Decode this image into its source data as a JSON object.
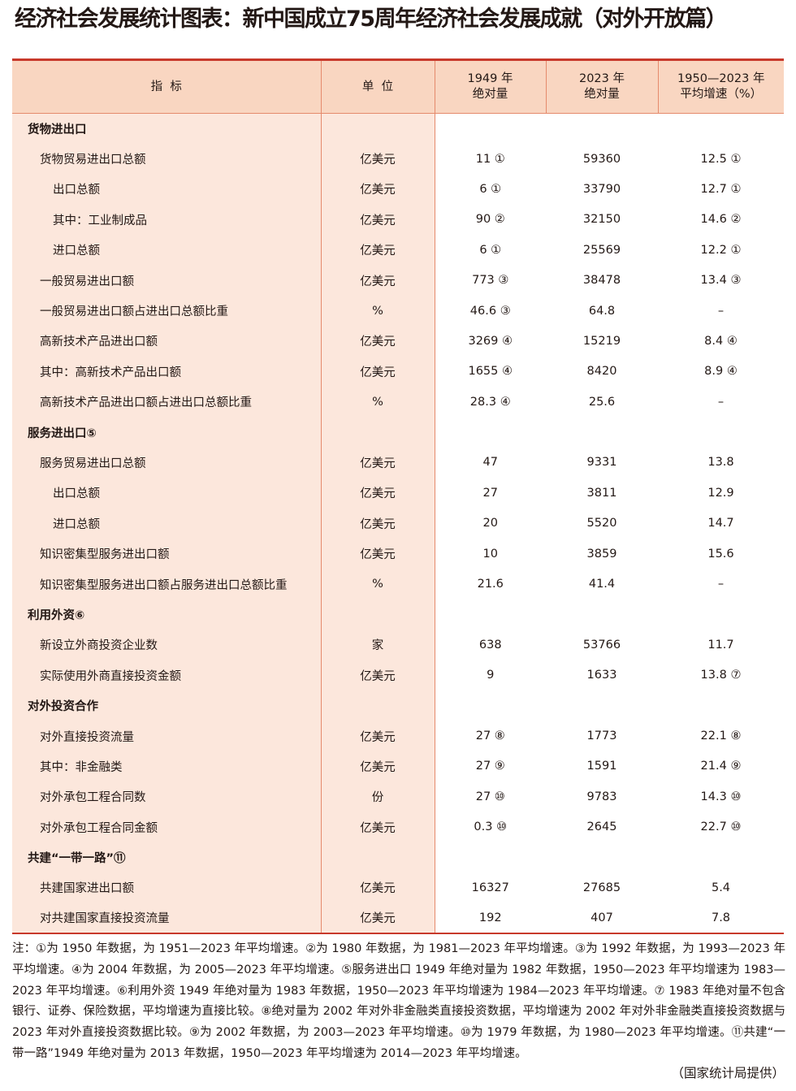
{
  "title": "经济社会发展统计图表：新中国成立75周年经济社会发展成就（对外开放篇）",
  "colors": {
    "header_bg": "#f9d6c1",
    "label_bg": "#fce7dc",
    "accent_red": "#c8392b"
  },
  "table": {
    "headers": [
      "指  标",
      "单  位",
      "1949 年\n绝对量",
      "2023 年\n绝对量",
      "1950—2023 年\n平均增速（%）"
    ],
    "rows": [
      {
        "level": 0,
        "name": "货物进出口",
        "unit": "",
        "v1949": "",
        "v2023": "",
        "growth": ""
      },
      {
        "level": 1,
        "name": "货物贸易进出口总额",
        "unit": "亿美元",
        "v1949": "11 ①",
        "v2023": "59360",
        "growth": "12.5 ①"
      },
      {
        "level": 2,
        "name": "出口总额",
        "unit": "亿美元",
        "v1949": "6 ①",
        "v2023": "33790",
        "growth": "12.7 ①"
      },
      {
        "level": 2,
        "name": "其中：工业制成品",
        "unit": "亿美元",
        "v1949": "90 ②",
        "v2023": "32150",
        "growth": "14.6 ②"
      },
      {
        "level": 2,
        "name": "进口总额",
        "unit": "亿美元",
        "v1949": "6 ①",
        "v2023": "25569",
        "growth": "12.2 ①"
      },
      {
        "level": 1,
        "name": "一般贸易进出口额",
        "unit": "亿美元",
        "v1949": "773 ③",
        "v2023": "38478",
        "growth": "13.4 ③"
      },
      {
        "level": 1,
        "name": "一般贸易进出口额占进出口总额比重",
        "unit": "%",
        "v1949": "46.6 ③",
        "v2023": "64.8",
        "growth": "–"
      },
      {
        "level": 1,
        "name": "高新技术产品进出口额",
        "unit": "亿美元",
        "v1949": "3269 ④",
        "v2023": "15219",
        "growth": "8.4 ④"
      },
      {
        "level": 1,
        "name": "其中：高新技术产品出口额",
        "unit": "亿美元",
        "v1949": "1655 ④",
        "v2023": "8420",
        "growth": "8.9 ④"
      },
      {
        "level": 1,
        "name": "高新技术产品进出口额占进出口总额比重",
        "unit": "%",
        "v1949": "28.3 ④",
        "v2023": "25.6",
        "growth": "–"
      },
      {
        "level": 0,
        "name": "服务进出口⑤",
        "unit": "",
        "v1949": "",
        "v2023": "",
        "growth": ""
      },
      {
        "level": 1,
        "name": "服务贸易进出口总额",
        "unit": "亿美元",
        "v1949": "47",
        "v2023": "9331",
        "growth": "13.8"
      },
      {
        "level": 2,
        "name": "出口总额",
        "unit": "亿美元",
        "v1949": "27",
        "v2023": "3811",
        "growth": "12.9"
      },
      {
        "level": 2,
        "name": "进口总额",
        "unit": "亿美元",
        "v1949": "20",
        "v2023": "5520",
        "growth": "14.7"
      },
      {
        "level": 1,
        "name": "知识密集型服务进出口额",
        "unit": "亿美元",
        "v1949": "10",
        "v2023": "3859",
        "growth": "15.6"
      },
      {
        "level": 1,
        "name": "知识密集型服务进出口额占服务进出口总额比重",
        "unit": "%",
        "v1949": "21.6",
        "v2023": "41.4",
        "growth": "–"
      },
      {
        "level": 0,
        "name": "利用外资⑥",
        "unit": "",
        "v1949": "",
        "v2023": "",
        "growth": ""
      },
      {
        "level": 1,
        "name": "新设立外商投资企业数",
        "unit": "家",
        "v1949": "638",
        "v2023": "53766",
        "growth": "11.7"
      },
      {
        "level": 1,
        "name": "实际使用外商直接投资金额",
        "unit": "亿美元",
        "v1949": "9",
        "v2023": "1633",
        "growth": "13.8 ⑦"
      },
      {
        "level": 0,
        "name": "对外投资合作",
        "unit": "",
        "v1949": "",
        "v2023": "",
        "growth": ""
      },
      {
        "level": 1,
        "name": "对外直接投资流量",
        "unit": "亿美元",
        "v1949": "27 ⑧",
        "v2023": "1773",
        "growth": "22.1 ⑧"
      },
      {
        "level": 1,
        "name": "其中：非金融类",
        "unit": "亿美元",
        "v1949": "27 ⑨",
        "v2023": "1591",
        "growth": "21.4 ⑨"
      },
      {
        "level": 1,
        "name": "对外承包工程合同数",
        "unit": "份",
        "v1949": "27 ⑩",
        "v2023": "9783",
        "growth": "14.3 ⑩"
      },
      {
        "level": 1,
        "name": "对外承包工程合同金额",
        "unit": "亿美元",
        "v1949": "0.3 ⑩",
        "v2023": "2645",
        "growth": "22.7 ⑩"
      },
      {
        "level": 0,
        "name": "共建“一带一路”⑪",
        "unit": "",
        "v1949": "",
        "v2023": "",
        "growth": ""
      },
      {
        "level": 1,
        "name": "共建国家进出口额",
        "unit": "亿美元",
        "v1949": "16327",
        "v2023": "27685",
        "growth": "5.4"
      },
      {
        "level": 1,
        "name": "对共建国家直接投资流量",
        "unit": "亿美元",
        "v1949": "192",
        "v2023": "407",
        "growth": "7.8"
      }
    ]
  },
  "notes": "注：①为 1950 年数据，为 1951—2023 年平均增速。②为 1980 年数据，为 1981—2023 年平均增速。③为 1992 年数据，为 1993—2023 年平均增速。④为 2004 年数据，为 2005—2023 年平均增速。⑤服务进出口 1949 年绝对量为 1982 年数据，1950—2023 年平均增速为 1983—2023 年平均增速。⑥利用外资 1949 年绝对量为 1983 年数据，1950—2023 年平均增速为 1984—2023 年平均增速。⑦ 1983 年绝对量不包含银行、证券、保险数据，平均增速为直接比较。⑧绝对量为 2002 年对外非金融类直接投资数据，平均增速为 2002 年对外非金融类直接投资数据与 2023 年对外直接投资数据比较。⑨为 2002 年数据，为 2003—2023 年平均增速。⑩为 1979 年数据，为 1980—2023 年平均增速。⑪共建“一带一路”1949 年绝对量为 2013 年数据，1950—2023 年平均增速为 2014—2023 年平均增速。",
  "source": "（国家统计局提供）"
}
